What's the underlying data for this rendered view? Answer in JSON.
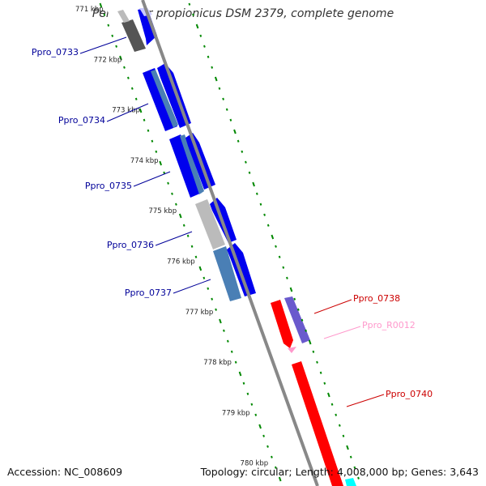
{
  "title": "Pelobacter propionicus DSM 2379, complete genome",
  "accession_text": "Accession: NC_008609",
  "topology_text": "Topology: circular; Length: 4,008,000 bp; Genes: 3,643",
  "colors": {
    "cds_forward": "#0000ff",
    "cds_reverse": "#ff0000",
    "rna": "#ff99cc",
    "backbone": "#888888",
    "tick": "#008800"
  },
  "ticks": [
    {
      "kbp": 771,
      "label": "771 kbp"
    },
    {
      "kbp": 772,
      "label": "772 kbp"
    },
    {
      "kbp": 773,
      "label": "773 kbp"
    },
    {
      "kbp": 774,
      "label": "774 kbp"
    },
    {
      "kbp": 775,
      "label": "775 kbp"
    },
    {
      "kbp": 776,
      "label": "776 kbp"
    },
    {
      "kbp": 777,
      "label": "777 kbp"
    },
    {
      "kbp": 778,
      "label": "778 kbp"
    },
    {
      "kbp": 779,
      "label": "779 kbp"
    },
    {
      "kbp": 780,
      "label": "780 kbp"
    }
  ],
  "genes": [
    {
      "label": "Ppro_0733",
      "color": "#000099",
      "start_kbp": 771.0,
      "end_kbp": 771.6
    },
    {
      "label": "Ppro_0734",
      "color": "#000099",
      "start_kbp": 772.0,
      "end_kbp": 773.2
    },
    {
      "label": "Ppro_0735",
      "color": "#000099",
      "start_kbp": 773.4,
      "end_kbp": 774.6
    },
    {
      "label": "Ppro_0736",
      "color": "#000099",
      "start_kbp": 774.7,
      "end_kbp": 775.5
    },
    {
      "label": "Ppro_0737",
      "color": "#000099",
      "start_kbp": 775.6,
      "end_kbp": 776.7
    },
    {
      "label": "Ppro_0738",
      "color": "#cc0000",
      "start_kbp": 777.0,
      "end_kbp": 777.8
    },
    {
      "label": "Ppro_R0012",
      "color": "#ff99cc",
      "start_kbp": 777.85,
      "end_kbp": 777.95
    },
    {
      "label": "Ppro_0740",
      "color": "#cc0000",
      "start_kbp": 778.1,
      "end_kbp": 780.0
    }
  ]
}
